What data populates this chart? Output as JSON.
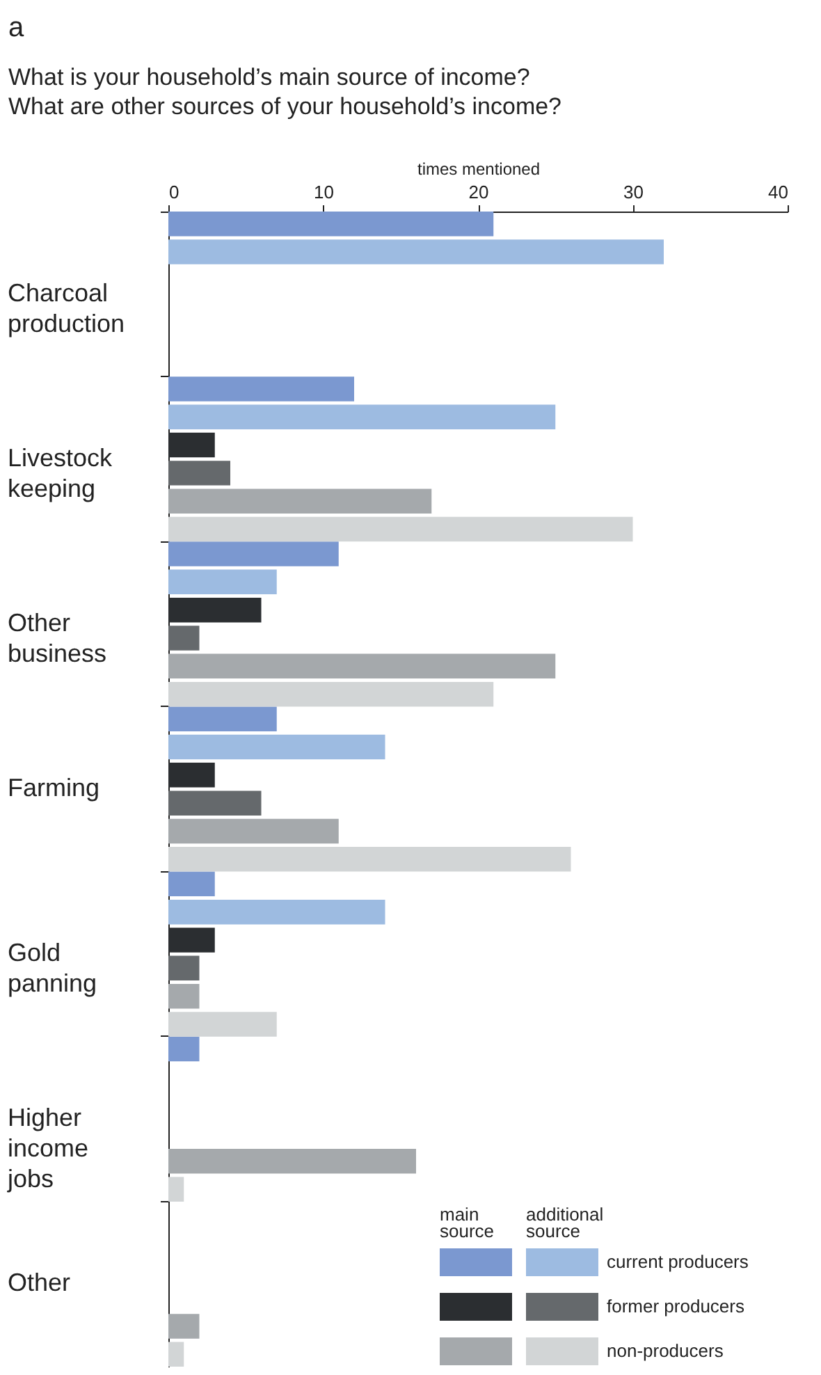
{
  "chart_data": {
    "type": "bar",
    "orientation": "horizontal",
    "title": "a",
    "subtitle": "What is your household’s main source of income?\nWhat are other sources of your household’s income?",
    "xlabel": "times mentioned",
    "categories": [
      "Charcoal production",
      "Livestock keeping",
      "Other business",
      "Farming",
      "Gold panning",
      "Higher income jobs",
      "Other"
    ],
    "series": [
      {
        "color": "#7b98d0",
        "values": [
          21,
          12,
          11,
          7,
          3,
          2,
          null
        ]
      },
      {
        "name": "current producers",
        "color": "#9dbbe1",
        "values": [
          32,
          25,
          7,
          14,
          14,
          null,
          null
        ]
      },
      {
        "color": "#2b2e31",
        "values": [
          null,
          3,
          6,
          3,
          3,
          null,
          null
        ]
      },
      {
        "name": "former producers",
        "color": "#65696c",
        "values": [
          null,
          4,
          2,
          6,
          2,
          null,
          null
        ]
      },
      {
        "color": "#a5a9ac",
        "values": [
          null,
          17,
          25,
          11,
          2,
          16,
          2
        ]
      },
      {
        "name": "non-producers",
        "color": "#d2d5d6",
        "values": [
          null,
          30,
          21,
          26,
          7,
          1,
          1
        ]
      }
    ],
    "annotations": [
      "main source",
      "additional source"
    ],
    "xlim": [
      0,
      40
    ],
    "xticks": [
      0,
      10,
      20,
      30,
      40
    ],
    "grid": false,
    "legend": "bottom right"
  }
}
